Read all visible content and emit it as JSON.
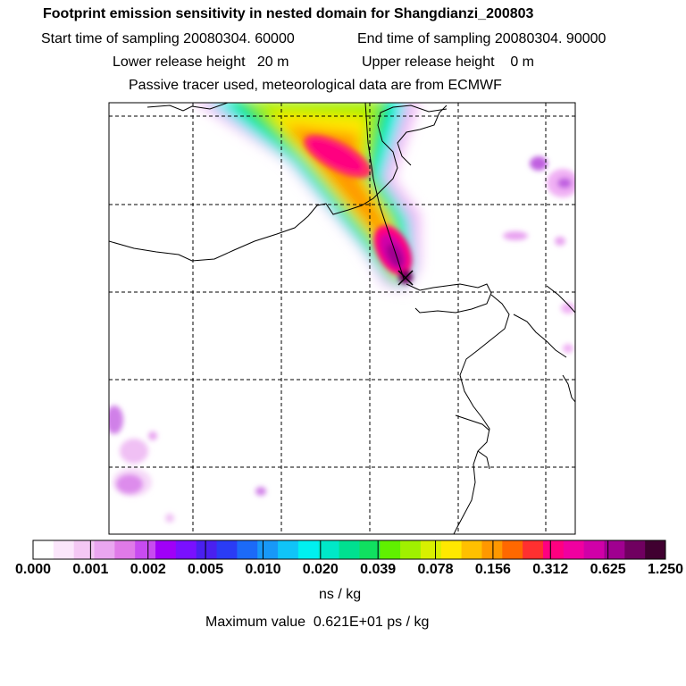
{
  "chart_data": {
    "type": "heatmap",
    "title": "Footprint emission sensitivity in nested domain for Shangdianzi_200803",
    "start_label": "Start time of sampling 20080304. 60000",
    "end_label": "End time of sampling 20080304. 90000",
    "lower_label": "Lower release height   20 m",
    "upper_label": "Upper release height    0 m",
    "subtitle": "Passive tracer used, meteorological data are from ECMWF",
    "colorbar": {
      "tick_labels": [
        "0.000",
        "0.001",
        "0.002",
        "0.005",
        "0.010",
        "0.020",
        "0.039",
        "0.078",
        "0.156",
        "0.312",
        "0.625",
        "1.250"
      ],
      "tick_values": [
        0.0,
        0.001,
        0.002,
        0.005,
        0.01,
        0.02,
        0.039,
        0.078,
        0.156,
        0.312,
        0.625,
        1.25
      ],
      "units": "ns / kg",
      "colors": [
        "#ffffff",
        "#fbe6fb",
        "#f4c8f4",
        "#eaa6f0",
        "#e07ae8",
        "#c84bf0",
        "#a000f8",
        "#7a10ff",
        "#4a20f0",
        "#2a3cf5",
        "#1c6af8",
        "#1898f8",
        "#10c4f8",
        "#00f0f0",
        "#00e8c8",
        "#00e090",
        "#10e060",
        "#60f000",
        "#a0f000",
        "#d8f000",
        "#ffe800",
        "#ffc000",
        "#ff9800",
        "#ff6800",
        "#ff3030",
        "#ff0080",
        "#f000a0",
        "#d000a8",
        "#a00090",
        "#700060",
        "#400030"
      ]
    },
    "max_value_label": "Maximum value  0.621E+01 ps / kg"
  }
}
